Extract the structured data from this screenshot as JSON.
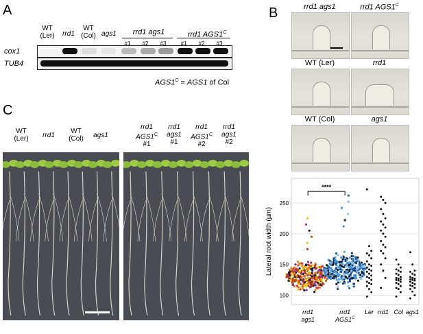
{
  "panel_a": {
    "letter": "A",
    "groups": [
      {
        "label_line1": "WT",
        "label_line2": "(Ler)"
      },
      {
        "label_line1": "rrd1",
        "label_line2": ""
      },
      {
        "label_line1": "WT",
        "label_line2": "(Col)"
      },
      {
        "label_line1": "ags1",
        "label_line2": ""
      }
    ],
    "rrd1_ags1_label": "rrd1 ags1",
    "rrd1_ags1c_label": "rrd1 AGS1",
    "rrd1_ags1c_sup": "C",
    "lines": [
      "#1",
      "#2",
      "#3",
      "#1",
      "#2",
      "#3"
    ],
    "genes": [
      "cox1",
      "TUB4"
    ],
    "footnote_a": "AGS1",
    "footnote_sup": "C",
    "footnote_b": " = ",
    "footnote_c": "AGS1",
    "footnote_d": " of Col"
  },
  "panel_b": {
    "letter": "B",
    "images": [
      {
        "label": "rrd1 ags1",
        "sup": ""
      },
      {
        "label": "rrd1 AGS1",
        "sup": "C"
      },
      {
        "label": "WT (Ler)",
        "sup": ""
      },
      {
        "label": "rrd1",
        "sup": ""
      },
      {
        "label": "WT (Col)",
        "sup": ""
      },
      {
        "label": "ags1",
        "sup": ""
      }
    ]
  },
  "panel_c": {
    "letter": "C",
    "left_labels": [
      {
        "l1": "WT",
        "l2": "(Ler)",
        "l3": ""
      },
      {
        "l1": "rrd1",
        "l2": "",
        "l3": ""
      },
      {
        "l1": "WT",
        "l2": "(Col)",
        "l3": ""
      },
      {
        "l1": "ags1",
        "l2": "",
        "l3": ""
      }
    ],
    "right_labels": [
      {
        "l1": "rrd1",
        "l2": "AGS1",
        "sup": "C",
        "l3": "#1"
      },
      {
        "l1": "rrd1",
        "l2": "ags1",
        "sup": "",
        "l3": "#1"
      },
      {
        "l1": "rrd1",
        "l2": "AGS1",
        "sup": "C",
        "l3": "#2"
      },
      {
        "l1": "rrd1",
        "l2": "ags1",
        "sup": "",
        "l3": "#2"
      }
    ]
  },
  "chart_data": {
    "type": "scatter",
    "ylabel": "Lateral root width (µm)",
    "ylim": [
      85,
      290
    ],
    "yticks": [
      100,
      150,
      200,
      250
    ],
    "grid": true,
    "significance": "****",
    "categories": [
      {
        "l1": "rrd1",
        "l2": "ags1",
        "sup": ""
      },
      {
        "l1": "rrd1",
        "l2": "AGS1",
        "sup": "C"
      },
      {
        "l1": "Ler",
        "l2": "",
        "sup": ""
      },
      {
        "l1": "rrd1",
        "l2": "",
        "sup": ""
      },
      {
        "l1": "Col",
        "l2": "",
        "sup": ""
      },
      {
        "l1": "ags1",
        "l2": "",
        "sup": ""
      }
    ],
    "series": [
      {
        "category_index": 2,
        "values": [
          272,
          180,
          172,
          168,
          165,
          160,
          155,
          150,
          148,
          145,
          142,
          140,
          138,
          135,
          132,
          130,
          128,
          125,
          122,
          120,
          118,
          115,
          110,
          105,
          98
        ]
      },
      {
        "category_index": 3,
        "values": [
          260,
          255,
          250,
          240,
          232,
          225,
          220,
          215,
          210,
          205,
          200,
          195,
          188,
          182,
          178,
          172,
          168,
          160,
          150,
          140,
          128,
          112
        ]
      },
      {
        "category_index": 4,
        "values": [
          158,
          150,
          145,
          142,
          140,
          138,
          135,
          133,
          130,
          128,
          127,
          126,
          125,
          124,
          122,
          120,
          118,
          115,
          112,
          110,
          105,
          98
        ]
      },
      {
        "category_index": 5,
        "values": [
          170,
          150,
          140,
          138,
          135,
          133,
          130,
          128,
          127,
          126,
          125,
          124,
          122,
          120,
          118,
          116,
          115,
          112,
          110,
          106,
          100,
          95
        ]
      }
    ],
    "dense_groups": [
      {
        "category_index": 0,
        "center": 132,
        "spread": 14,
        "min": 92,
        "max": 225,
        "n": 320,
        "palette": [
          "#1a1a1a",
          "#c0392b",
          "#e67e22",
          "#f1c40f",
          "#8e2f86",
          "#d35400"
        ]
      },
      {
        "category_index": 1,
        "center": 142,
        "spread": 16,
        "min": 98,
        "max": 262,
        "n": 300,
        "palette": [
          "#1a1a1a",
          "#1f5aa6",
          "#3c8dd8",
          "#8fc2ea",
          "#0e3a70",
          "#5b9bd5"
        ]
      }
    ]
  }
}
